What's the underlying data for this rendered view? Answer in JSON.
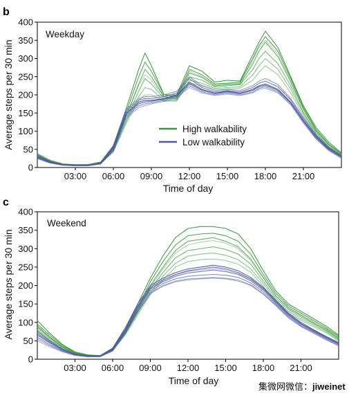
{
  "colors": {
    "high": "#3a9a3a",
    "low": "#4d59a3",
    "axis": "#000000"
  },
  "watermark": {
    "text": "集微网微信：",
    "handle": "jiweinet"
  },
  "chart_data": [
    {
      "panel_letter": "b",
      "type": "line",
      "panel_name": "Weekday",
      "xlabel": "Time of day",
      "ylabel": "Average steps per 30 min",
      "xlim": [
        0,
        24
      ],
      "ylim": [
        0,
        400
      ],
      "x_ticks": [
        3,
        6,
        9,
        12,
        15,
        18,
        21
      ],
      "x_tick_labels": [
        "03:00",
        "06:00",
        "09:00",
        "12:00",
        "15:00",
        "18:00",
        "21:00"
      ],
      "y_ticks": [
        0,
        50,
        100,
        150,
        200,
        250,
        300,
        350,
        400
      ],
      "grid": false,
      "legend": {
        "placement": "center",
        "entries": [
          {
            "label": "High walkability",
            "group": "high"
          },
          {
            "label": "Low walkability",
            "group": "low"
          }
        ]
      },
      "x": [
        0,
        1,
        2,
        3,
        4,
        5,
        6,
        7,
        8,
        8.5,
        9,
        10,
        11,
        12,
        13,
        14,
        15,
        16,
        17,
        17.5,
        18,
        19,
        20,
        21,
        22,
        23,
        24
      ],
      "series": [
        {
          "group": "high",
          "values": [
            38,
            20,
            10,
            8,
            8,
            15,
            60,
            160,
            270,
            315,
            280,
            200,
            200,
            280,
            265,
            235,
            240,
            238,
            310,
            345,
            375,
            330,
            250,
            170,
            110,
            70,
            40
          ]
        },
        {
          "group": "high",
          "values": [
            35,
            18,
            9,
            7,
            8,
            14,
            55,
            150,
            250,
            290,
            265,
            200,
            195,
            270,
            255,
            230,
            232,
            235,
            300,
            335,
            360,
            320,
            245,
            165,
            105,
            65,
            38
          ]
        },
        {
          "group": "high",
          "values": [
            32,
            17,
            9,
            7,
            7,
            13,
            50,
            140,
            230,
            270,
            250,
            195,
            190,
            260,
            248,
            225,
            228,
            230,
            285,
            320,
            345,
            305,
            235,
            160,
            100,
            62,
            36
          ]
        },
        {
          "group": "high",
          "values": [
            30,
            16,
            8,
            6,
            7,
            12,
            48,
            130,
            210,
            245,
            230,
            190,
            188,
            250,
            240,
            222,
            225,
            228,
            270,
            300,
            320,
            285,
            225,
            152,
            96,
            58,
            34
          ]
        },
        {
          "group": "high",
          "values": [
            28,
            15,
            8,
            6,
            7,
            12,
            45,
            125,
            195,
            220,
            215,
            185,
            185,
            240,
            232,
            218,
            220,
            222,
            255,
            280,
            300,
            270,
            215,
            148,
            92,
            56,
            32
          ]
        },
        {
          "group": "high",
          "values": [
            26,
            14,
            7,
            6,
            6,
            11,
            42,
            120,
            185,
            200,
            200,
            182,
            183,
            232,
            226,
            215,
            216,
            218,
            240,
            262,
            280,
            255,
            205,
            142,
            88,
            54,
            31
          ]
        },
        {
          "group": "high",
          "values": [
            30,
            16,
            8,
            6,
            7,
            13,
            52,
            140,
            225,
            255,
            240,
            195,
            192,
            265,
            250,
            228,
            230,
            232,
            295,
            330,
            350,
            312,
            240,
            162,
            102,
            63,
            37
          ]
        },
        {
          "group": "low",
          "values": [
            30,
            15,
            8,
            6,
            6,
            12,
            55,
            150,
            180,
            185,
            185,
            190,
            200,
            235,
            215,
            205,
            210,
            205,
            215,
            225,
            230,
            215,
            180,
            130,
            85,
            52,
            30
          ]
        },
        {
          "group": "low",
          "values": [
            28,
            14,
            7,
            6,
            6,
            11,
            52,
            145,
            175,
            180,
            182,
            188,
            198,
            230,
            212,
            203,
            208,
            203,
            212,
            222,
            226,
            212,
            178,
            128,
            83,
            50,
            29
          ]
        },
        {
          "group": "low",
          "values": [
            32,
            16,
            8,
            6,
            6,
            12,
            58,
            155,
            185,
            190,
            190,
            195,
            205,
            245,
            220,
            208,
            212,
            208,
            220,
            232,
            238,
            222,
            186,
            134,
            88,
            54,
            32
          ]
        },
        {
          "group": "low",
          "values": [
            26,
            13,
            7,
            5,
            5,
            10,
            48,
            140,
            170,
            175,
            178,
            185,
            195,
            225,
            208,
            200,
            205,
            200,
            208,
            218,
            222,
            208,
            175,
            125,
            80,
            48,
            27
          ]
        },
        {
          "group": "low",
          "values": [
            34,
            17,
            9,
            7,
            7,
            13,
            60,
            160,
            190,
            195,
            195,
            200,
            210,
            250,
            225,
            212,
            215,
            212,
            225,
            238,
            245,
            228,
            190,
            138,
            90,
            56,
            33
          ]
        },
        {
          "group": "low",
          "values": [
            24,
            12,
            6,
            5,
            5,
            10,
            45,
            135,
            165,
            170,
            175,
            182,
            192,
            220,
            205,
            198,
            202,
            198,
            205,
            215,
            218,
            205,
            172,
            122,
            78,
            46,
            25
          ]
        },
        {
          "group": "low",
          "values": [
            29,
            14,
            7,
            6,
            6,
            11,
            54,
            148,
            178,
            183,
            184,
            189,
            199,
            232,
            214,
            204,
            209,
            204,
            214,
            224,
            228,
            214,
            179,
            129,
            84,
            51,
            30
          ]
        }
      ]
    },
    {
      "panel_letter": "c",
      "type": "line",
      "panel_name": "Weekend",
      "xlabel": "Time of day",
      "ylabel": "Average steps per 30 min",
      "xlim": [
        0,
        24
      ],
      "ylim": [
        0,
        400
      ],
      "x_ticks": [
        3,
        6,
        9,
        12,
        15,
        18,
        21
      ],
      "x_tick_labels": [
        "03:00",
        "06:00",
        "09:00",
        "12:00",
        "15:00",
        "18:00",
        "21:00"
      ],
      "y_ticks": [
        0,
        50,
        100,
        150,
        200,
        250,
        300,
        350,
        400
      ],
      "grid": false,
      "x": [
        0,
        1,
        2,
        3,
        4,
        5,
        6,
        7,
        8,
        9,
        10,
        11,
        12,
        13,
        14,
        15,
        16,
        17,
        18,
        19,
        20,
        21,
        22,
        23,
        24
      ],
      "series": [
        {
          "group": "high",
          "values": [
            105,
            70,
            40,
            20,
            12,
            10,
            30,
            80,
            150,
            220,
            280,
            330,
            355,
            360,
            360,
            355,
            340,
            300,
            240,
            185,
            150,
            130,
            110,
            90,
            65
          ]
        },
        {
          "group": "high",
          "values": [
            95,
            65,
            38,
            18,
            11,
            9,
            28,
            75,
            140,
            210,
            265,
            310,
            335,
            340,
            342,
            335,
            320,
            285,
            230,
            178,
            145,
            125,
            105,
            85,
            62
          ]
        },
        {
          "group": "high",
          "values": [
            90,
            60,
            35,
            17,
            10,
            9,
            26,
            72,
            135,
            200,
            250,
            295,
            320,
            325,
            330,
            320,
            305,
            272,
            222,
            172,
            140,
            120,
            100,
            82,
            58
          ]
        },
        {
          "group": "high",
          "values": [
            85,
            58,
            33,
            16,
            10,
            8,
            25,
            70,
            130,
            190,
            235,
            275,
            295,
            300,
            305,
            298,
            285,
            258,
            212,
            165,
            135,
            115,
            96,
            78,
            55
          ]
        },
        {
          "group": "high",
          "values": [
            80,
            55,
            32,
            15,
            9,
            8,
            24,
            68,
            125,
            180,
            225,
            260,
            280,
            285,
            288,
            282,
            270,
            245,
            205,
            160,
            130,
            110,
            92,
            75,
            52
          ]
        },
        {
          "group": "high",
          "values": [
            78,
            52,
            30,
            15,
            9,
            8,
            23,
            65,
            120,
            175,
            215,
            250,
            265,
            270,
            272,
            268,
            258,
            236,
            198,
            155,
            126,
            106,
            88,
            72,
            50
          ]
        },
        {
          "group": "high",
          "values": [
            88,
            60,
            34,
            17,
            10,
            9,
            26,
            72,
            133,
            196,
            245,
            288,
            310,
            318,
            322,
            315,
            300,
            268,
            220,
            170,
            138,
            118,
            98,
            80,
            57
          ]
        },
        {
          "group": "low",
          "values": [
            75,
            50,
            28,
            14,
            9,
            9,
            30,
            85,
            150,
            200,
            220,
            235,
            245,
            250,
            255,
            250,
            240,
            222,
            195,
            160,
            125,
            100,
            80,
            62,
            45
          ]
        },
        {
          "group": "low",
          "values": [
            70,
            47,
            26,
            13,
            9,
            9,
            28,
            80,
            145,
            195,
            215,
            230,
            240,
            245,
            250,
            245,
            235,
            218,
            192,
            157,
            122,
            97,
            78,
            60,
            43
          ]
        },
        {
          "group": "low",
          "values": [
            65,
            44,
            25,
            13,
            8,
            8,
            27,
            78,
            140,
            190,
            210,
            225,
            234,
            238,
            242,
            238,
            230,
            213,
            188,
            153,
            120,
            95,
            76,
            58,
            42
          ]
        },
        {
          "group": "low",
          "values": [
            60,
            40,
            23,
            12,
            8,
            8,
            25,
            75,
            135,
            185,
            205,
            218,
            225,
            228,
            230,
            228,
            222,
            207,
            183,
            150,
            117,
            92,
            74,
            56,
            40
          ]
        },
        {
          "group": "low",
          "values": [
            55,
            37,
            21,
            11,
            7,
            7,
            23,
            72,
            130,
            180,
            200,
            212,
            218,
            220,
            222,
            220,
            215,
            202,
            178,
            147,
            114,
            90,
            72,
            54,
            38
          ]
        },
        {
          "group": "low",
          "values": [
            50,
            34,
            20,
            10,
            7,
            7,
            22,
            70,
            128,
            178,
            198,
            210,
            215,
            218,
            220,
            218,
            212,
            200,
            176,
            145,
            112,
            88,
            70,
            52,
            36
          ]
        },
        {
          "group": "low",
          "values": [
            68,
            45,
            25,
            13,
            8,
            8,
            27,
            79,
            142,
            192,
            212,
            228,
            238,
            242,
            246,
            242,
            232,
            216,
            190,
            155,
            121,
            96,
            77,
            59,
            42
          ]
        }
      ]
    }
  ]
}
